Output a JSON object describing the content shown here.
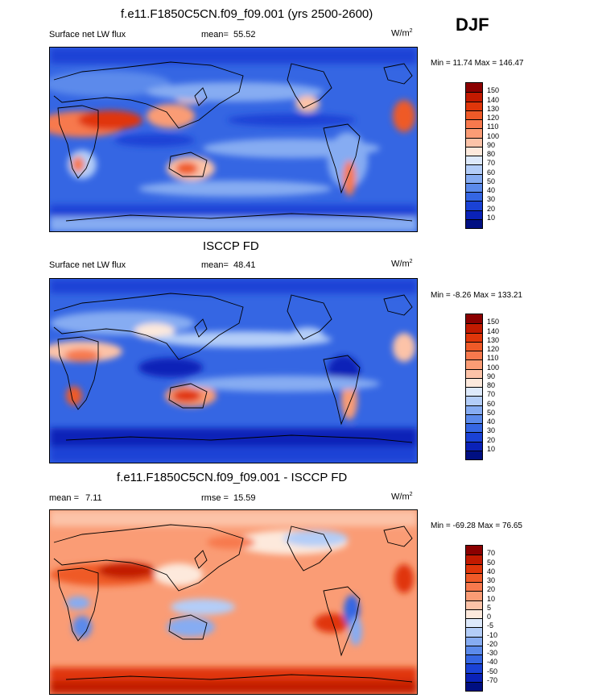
{
  "season": "DJF",
  "panels": [
    {
      "title": "f.e11.F1850C5CN.f09_f09.001 (yrs 2500-2600)",
      "variable": "Surface net LW flux",
      "stat_label": "mean=",
      "stat_value": "55.52",
      "units_base": "W/m",
      "units_exp": "2",
      "min_label": "Min =",
      "min_value": "11.74",
      "max_label": "Max =",
      "max_value": "146.47",
      "scale": [
        "150",
        "140",
        "130",
        "120",
        "110",
        "100",
        "90",
        "80",
        "70",
        "60",
        "50",
        "40",
        "30",
        "20",
        "10"
      ],
      "colors": [
        "#8b0000",
        "#c21a00",
        "#e0360a",
        "#ef5a28",
        "#f7794d",
        "#fa9c75",
        "#fcc3a8",
        "#fde9dc",
        "#dde9fb",
        "#b3cdf8",
        "#86acf2",
        "#5b8aeb",
        "#3566e3",
        "#1a42d6",
        "#0a22b8",
        "#000f82"
      ]
    },
    {
      "title": "ISCCP FD",
      "variable": "Surface net LW flux",
      "stat_label": "mean=",
      "stat_value": "48.41",
      "units_base": "W/m",
      "units_exp": "2",
      "min_label": "Min =",
      "min_value": "-8.26",
      "max_label": "Max =",
      "max_value": "133.21",
      "scale": [
        "150",
        "140",
        "130",
        "120",
        "110",
        "100",
        "90",
        "80",
        "70",
        "60",
        "50",
        "40",
        "30",
        "20",
        "10"
      ],
      "colors": [
        "#8b0000",
        "#c21a00",
        "#e0360a",
        "#ef5a28",
        "#f7794d",
        "#fa9c75",
        "#fcc3a8",
        "#fde9dc",
        "#dde9fb",
        "#b3cdf8",
        "#86acf2",
        "#5b8aeb",
        "#3566e3",
        "#1a42d6",
        "#0a22b8",
        "#000f82"
      ]
    },
    {
      "title": "f.e11.F1850C5CN.f09_f09.001 - ISCCP FD",
      "variable": "mean =",
      "variable_value": "7.11",
      "stat_label": "rmse =",
      "stat_value": "15.59",
      "units_base": "W/m",
      "units_exp": "2",
      "min_label": "Min =",
      "min_value": "-69.28",
      "max_label": "Max =",
      "max_value": "76.65",
      "scale": [
        "70",
        "50",
        "40",
        "30",
        "20",
        "10",
        "5",
        "0",
        "-5",
        "-10",
        "-20",
        "-30",
        "-40",
        "-50",
        "-70"
      ],
      "colors": [
        "#8b0000",
        "#c21a00",
        "#e0360a",
        "#ef5a28",
        "#f7794d",
        "#fa9c75",
        "#fcc3a8",
        "#fde9dc",
        "#dde9fb",
        "#b3cdf8",
        "#86acf2",
        "#5b8aeb",
        "#3566e3",
        "#1a42d6",
        "#0a22b8",
        "#000f82"
      ]
    }
  ]
}
